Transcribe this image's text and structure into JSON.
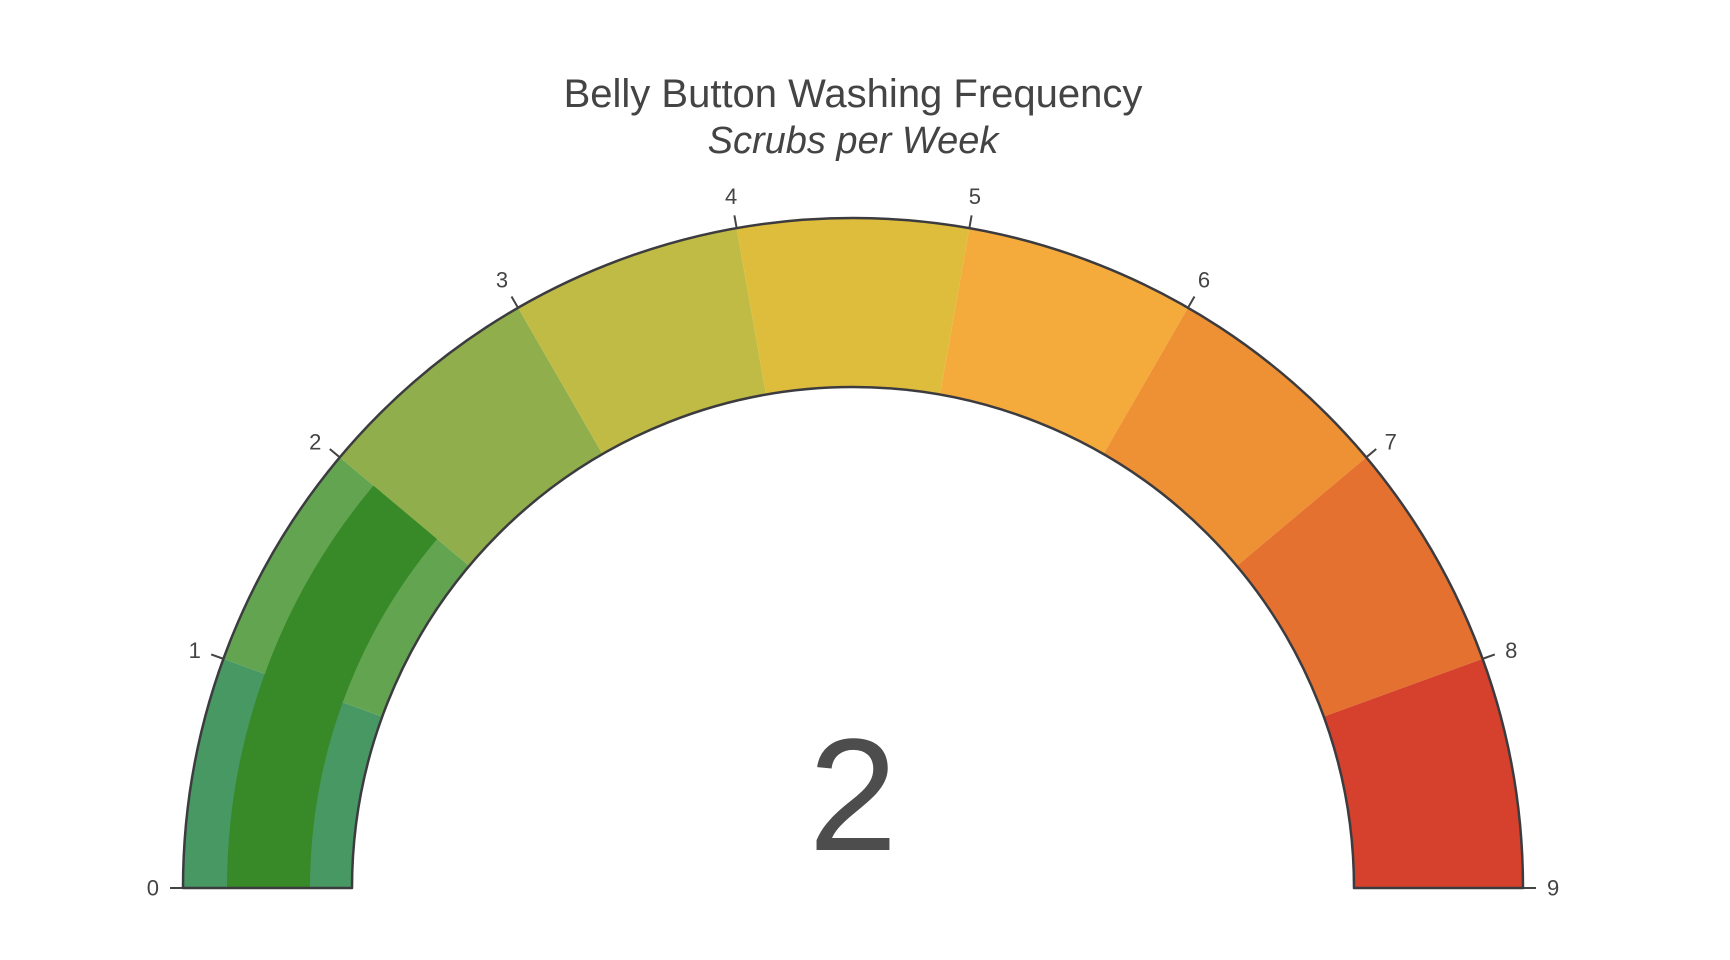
{
  "chart_data": {
    "type": "gauge",
    "title": "Belly Button Washing Frequency",
    "subtitle": "Scrubs per Week",
    "value": 2,
    "value_display": "2",
    "range": [
      0,
      9
    ],
    "tick_values": [
      0,
      1,
      2,
      3,
      4,
      5,
      6,
      7,
      8,
      9
    ],
    "tick_labels": [
      "0",
      "1",
      "2",
      "3",
      "4",
      "5",
      "6",
      "7",
      "8",
      "9"
    ],
    "steps": [
      {
        "from": 0,
        "to": 1,
        "color": "#489864"
      },
      {
        "from": 1,
        "to": 2,
        "color": "#63a451"
      },
      {
        "from": 2,
        "to": 3,
        "color": "#90ae4b"
      },
      {
        "from": 3,
        "to": 4,
        "color": "#c0bb44"
      },
      {
        "from": 4,
        "to": 5,
        "color": "#dfbd3c"
      },
      {
        "from": 5,
        "to": 6,
        "color": "#f4ab3c"
      },
      {
        "from": 6,
        "to": 7,
        "color": "#ee9034"
      },
      {
        "from": 7,
        "to": 8,
        "color": "#e4712f"
      },
      {
        "from": 8,
        "to": 9,
        "color": "#d5412c"
      }
    ],
    "bar": {
      "from": 0,
      "to": 2,
      "color": "#378a27"
    },
    "outline_color": "#3c3c40",
    "tick_color": "#444444",
    "text_color": "#444444",
    "value_color": "#4d4d4d",
    "background": "#ffffff",
    "legend": "off",
    "grid": "off"
  }
}
